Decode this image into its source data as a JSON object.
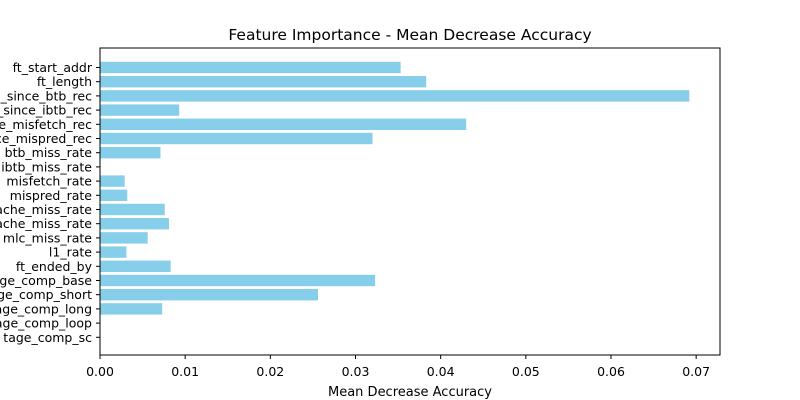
{
  "chart_data": {
    "type": "bar",
    "orientation": "horizontal",
    "title": "Feature Importance - Mean Decrease Accuracy",
    "xlabel": "Mean Decrease Accuracy",
    "ylabel": "",
    "xlim": [
      0,
      0.0728
    ],
    "xticks": [
      "0.00",
      "0.01",
      "0.02",
      "0.03",
      "0.04",
      "0.05",
      "0.06",
      "0.07"
    ],
    "grid": false,
    "legend": "none",
    "bar_color": "#87CEEB",
    "categories": [
      "ft_start_addr",
      "ft_length",
      "cycles_since_btb_rec",
      "cycles_since_ibtb_rec",
      "cycles_since_misfetch_rec",
      "cycles_since_mispred_rec",
      "btb_miss_rate",
      "ibtb_miss_rate",
      "misfetch_rate",
      "mispred_rate",
      "icache_miss_rate",
      "dcache_miss_rate",
      "mlc_miss_rate",
      "l1_rate",
      "ft_ended_by",
      "tage_comp_base",
      "tage_comp_short",
      "tage_comp_long",
      "tage_comp_loop",
      "tage_comp_sc"
    ],
    "values": [
      0.0353,
      0.0383,
      0.0692,
      0.0093,
      0.043,
      0.032,
      0.0071,
      0.0,
      0.0029,
      0.0032,
      0.0076,
      0.0081,
      0.0056,
      0.0031,
      0.0083,
      0.0323,
      0.0256,
      0.0073,
      0.0,
      0.0
    ]
  }
}
